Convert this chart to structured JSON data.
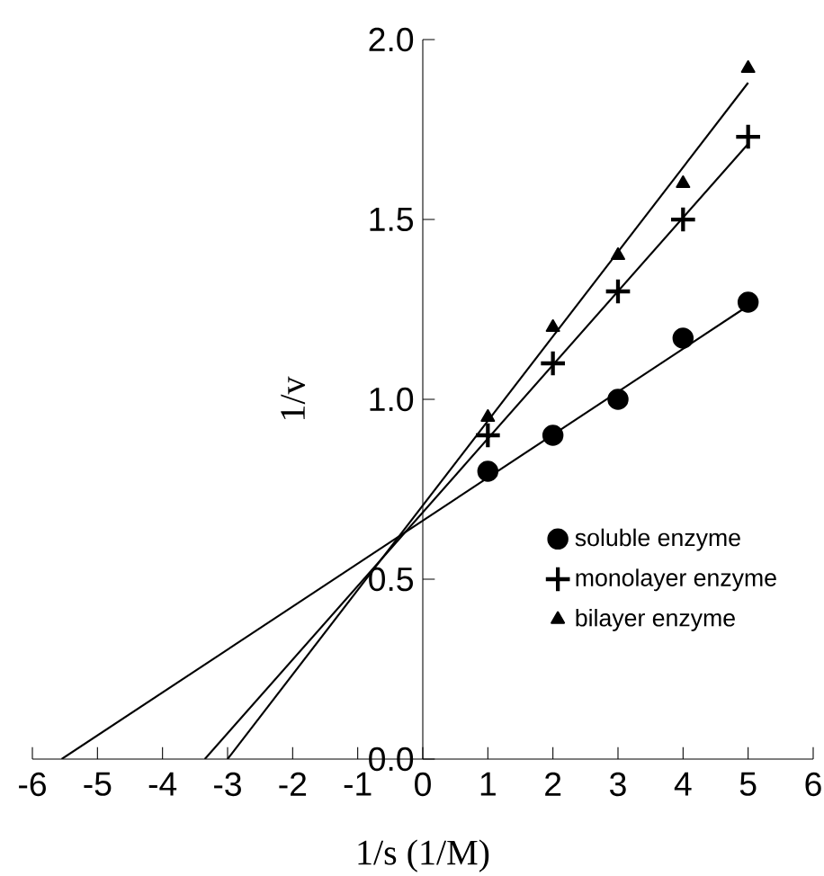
{
  "chart_data": {
    "type": "scatter",
    "xlabel": "1/s (1/M)",
    "ylabel": "1/v",
    "x": [
      1,
      2,
      3,
      4,
      5
    ],
    "series": [
      {
        "name": "soluble enzyme",
        "color": "#000000",
        "marker": "circle",
        "values": [
          0.8,
          0.9,
          1.0,
          1.17,
          1.27
        ]
      },
      {
        "name": "monolayer enzyme",
        "color": "#000000",
        "marker": "cross",
        "values": [
          0.9,
          1.1,
          1.3,
          1.5,
          1.73
        ]
      },
      {
        "name": "bilayer enzyme",
        "color": "#000000",
        "marker": "triangle",
        "values": [
          0.95,
          1.2,
          1.4,
          1.6,
          1.92
        ]
      },
      {
        "type": "line",
        "color": "#000000",
        "marker": "none",
        "x": [
          -5.55,
          5
        ],
        "values": [
          0,
          1.26
        ]
      },
      {
        "type": "line",
        "color": "#000000",
        "marker": "none",
        "x": [
          -3.35,
          5
        ],
        "values": [
          0,
          1.71
        ]
      },
      {
        "type": "line",
        "color": "#000000",
        "marker": "none",
        "x": [
          -3.0,
          5
        ],
        "values": [
          0,
          1.88
        ]
      }
    ],
    "xlim": [
      -6,
      6
    ],
    "xticks": [
      -6,
      -5,
      -4,
      -3,
      -2,
      -1,
      0,
      1,
      2,
      3,
      4,
      5,
      6
    ],
    "ylim": [
      0,
      2.0
    ],
    "yticks": [
      {
        "value": 0,
        "label": "0.0"
      },
      {
        "value": 0.5,
        "label": "0.5"
      },
      {
        "value": 1,
        "label": "1.0"
      },
      {
        "value": 1.5,
        "label": "1.5"
      },
      {
        "value": 2,
        "label": "2.0"
      }
    ],
    "grid": false,
    "legend": "right"
  }
}
